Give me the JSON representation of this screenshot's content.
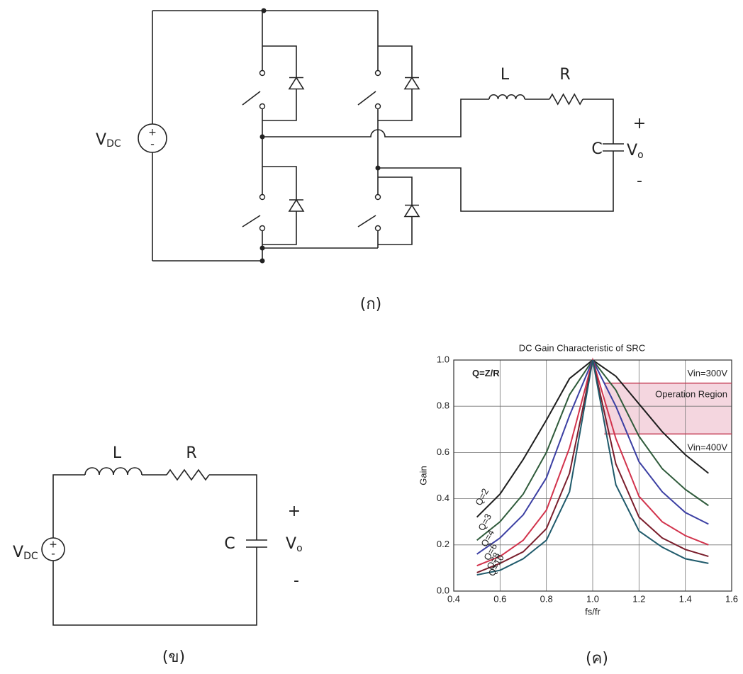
{
  "circuit_a": {
    "source_label": "V",
    "source_sub": "DC",
    "source_plus": "+",
    "source_minus": "-",
    "inductor": "L",
    "resistor": "R",
    "capacitor": "C",
    "out_plus": "+",
    "out_label": "V",
    "out_sub": "o",
    "out_minus": "-",
    "caption": "(ก)"
  },
  "circuit_b": {
    "source_label": "V",
    "source_sub": "DC",
    "source_plus": "+",
    "source_minus": "-",
    "inductor": "L",
    "resistor": "R",
    "capacitor": "C",
    "out_plus": "+",
    "out_label": "V",
    "out_sub": "o",
    "out_minus": "-",
    "caption": "(ข)"
  },
  "chart_data": {
    "type": "line",
    "title": "DC Gain Characteristic of SRC",
    "x_label": "fs/fr",
    "y_label": "Gain",
    "annotations": {
      "q_def": "Q=Z/R",
      "vin_high": "Vin=300V",
      "region": "Operation Region",
      "vin_low": "Vin=400V"
    },
    "operation_region": {
      "x": [
        1.05,
        1.6
      ],
      "y": [
        0.68,
        0.9
      ]
    },
    "x": [
      0.5,
      0.6,
      0.7,
      0.8,
      0.9,
      1.0,
      1.1,
      1.2,
      1.3,
      1.4,
      1.5
    ],
    "series": [
      {
        "name": "Q=2",
        "color": "#1e1e1e",
        "values": [
          0.32,
          0.42,
          0.57,
          0.74,
          0.92,
          1.0,
          0.93,
          0.81,
          0.69,
          0.59,
          0.51
        ]
      },
      {
        "name": "Q=3",
        "color": "#2f5b3b",
        "values": [
          0.22,
          0.3,
          0.42,
          0.6,
          0.85,
          1.0,
          0.87,
          0.67,
          0.53,
          0.44,
          0.37
        ]
      },
      {
        "name": "Q=4",
        "color": "#3b3fa3",
        "values": [
          0.16,
          0.23,
          0.33,
          0.49,
          0.76,
          1.0,
          0.8,
          0.56,
          0.43,
          0.34,
          0.29
        ]
      },
      {
        "name": "Q=6",
        "color": "#d2334c",
        "values": [
          0.11,
          0.15,
          0.22,
          0.35,
          0.62,
          1.0,
          0.66,
          0.41,
          0.3,
          0.24,
          0.2
        ]
      },
      {
        "name": "Q=8",
        "color": "#7a1e2c",
        "values": [
          0.08,
          0.12,
          0.17,
          0.27,
          0.51,
          1.0,
          0.55,
          0.32,
          0.23,
          0.18,
          0.15
        ]
      },
      {
        "name": "Q=10",
        "color": "#1f5a6b",
        "values": [
          0.07,
          0.09,
          0.14,
          0.22,
          0.43,
          1.0,
          0.46,
          0.26,
          0.19,
          0.14,
          0.12
        ]
      }
    ],
    "xlim": [
      0.4,
      1.6
    ],
    "xticks": [
      0.4,
      0.6,
      0.8,
      {
        "value": 1.0,
        "label": "1.0"
      },
      1.2,
      1.4,
      1.6
    ],
    "ylim": [
      0,
      1.0
    ],
    "yticks": [
      {
        "value": 0,
        "label": "0.0"
      },
      0.2,
      0.4,
      0.6,
      0.8,
      {
        "value": 1.0,
        "label": "1.0"
      }
    ],
    "grid": true
  },
  "caption_c": "(ค)"
}
